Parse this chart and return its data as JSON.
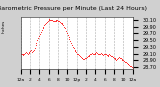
{
  "title": "Barometric Pressure per Minute (Last 24 Hours)",
  "left_label": "Inches",
  "bg_color": "#d0d0d0",
  "plot_bg": "#ffffff",
  "line_color": "#ff0000",
  "grid_color": "#888888",
  "ylim": [
    28.65,
    30.2
  ],
  "ytick_vals": [
    28.7,
    28.9,
    29.1,
    29.3,
    29.5,
    29.7,
    29.9,
    30.1
  ],
  "pressure_data": [
    29.1,
    29.08,
    29.06,
    29.08,
    29.1,
    29.12,
    29.14,
    29.12,
    29.1,
    29.13,
    29.15,
    29.18,
    29.2,
    29.15,
    29.18,
    29.22,
    29.28,
    29.35,
    29.42,
    29.5,
    29.56,
    29.62,
    29.68,
    29.74,
    29.8,
    29.85,
    29.9,
    29.94,
    29.98,
    30.02,
    30.05,
    30.08,
    30.1,
    30.12,
    30.11,
    30.1,
    30.09,
    30.08,
    30.07,
    30.06,
    30.08,
    30.1,
    30.09,
    30.08,
    30.06,
    30.04,
    30.02,
    30.0,
    29.98,
    29.95,
    29.9,
    29.85,
    29.78,
    29.72,
    29.65,
    29.58,
    29.52,
    29.46,
    29.4,
    29.35,
    29.3,
    29.26,
    29.22,
    29.18,
    29.14,
    29.1,
    29.08,
    29.05,
    29.02,
    29.0,
    28.98,
    28.96,
    28.95,
    28.94,
    28.96,
    28.98,
    29.0,
    29.02,
    29.04,
    29.06,
    29.08,
    29.1,
    29.12,
    29.1,
    29.08,
    29.1,
    29.12,
    29.14,
    29.12,
    29.1,
    29.08,
    29.1,
    29.12,
    29.1,
    29.08,
    29.06,
    29.08,
    29.1,
    29.08,
    29.06,
    29.04,
    29.06,
    29.08,
    29.06,
    29.04,
    29.02,
    29.0,
    28.98,
    28.96,
    28.94,
    28.92,
    28.95,
    28.98,
    29.0,
    28.98,
    28.96,
    28.94,
    28.92,
    28.9,
    28.88,
    28.86,
    28.84,
    28.82,
    28.8,
    28.78,
    28.76,
    28.74,
    28.72,
    28.7,
    28.68
  ],
  "xtick_labels": [
    "12a",
    "2",
    "4",
    "6",
    "8",
    "10",
    "12p",
    "2",
    "4",
    "6",
    "8",
    "10",
    "12a"
  ],
  "num_xticks": 13,
  "title_fontsize": 4.5,
  "tick_fontsize": 3.5,
  "marker_size": 1.2
}
